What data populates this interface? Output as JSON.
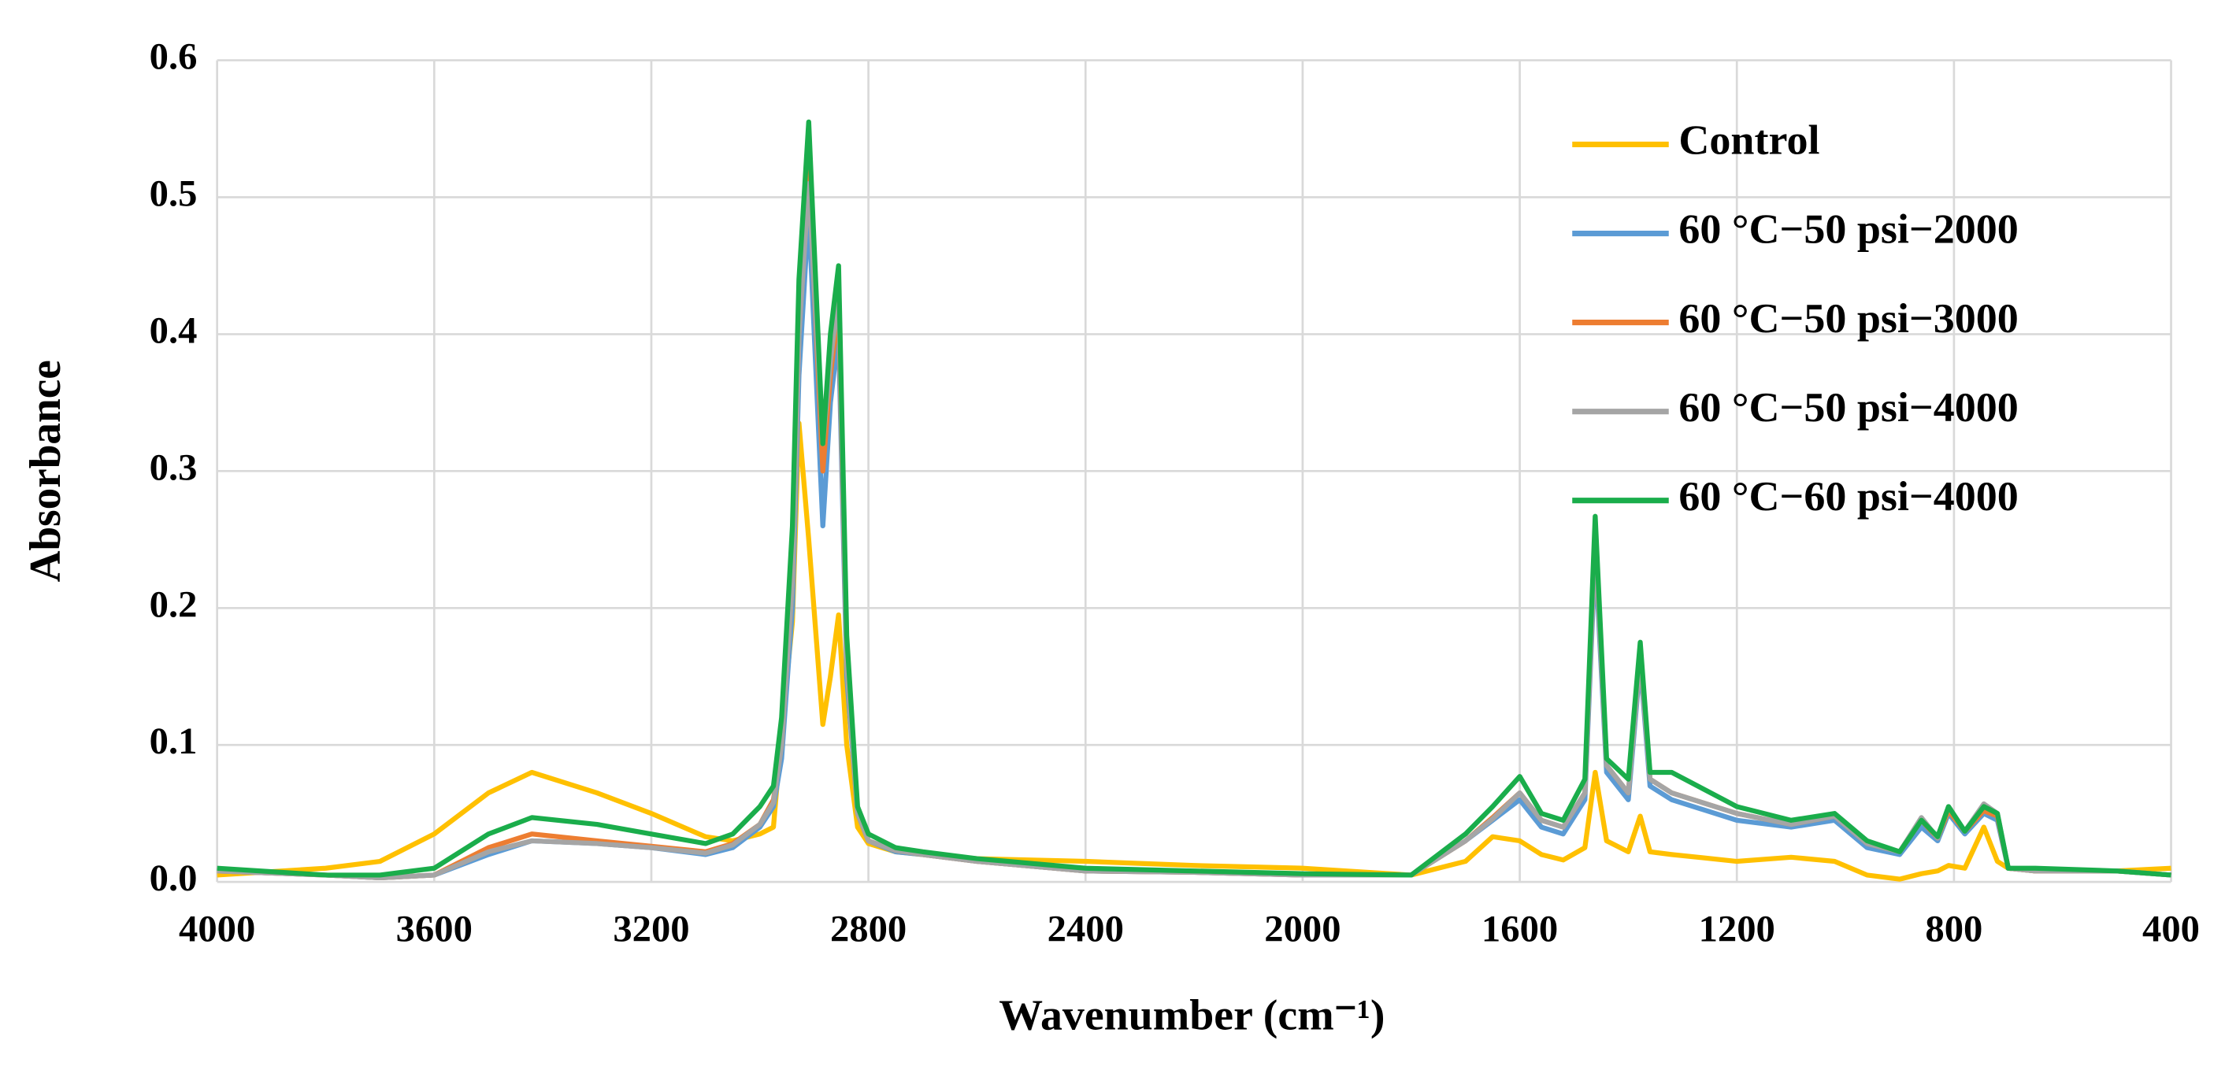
{
  "chart_data": {
    "type": "line",
    "x_label": "Wavenumber (cm⁻¹)",
    "y_label": "Absorbance",
    "xlim": [
      4000,
      400
    ],
    "ylim": [
      0,
      0.6
    ],
    "xticks": [
      4000,
      3600,
      3200,
      2800,
      2400,
      2000,
      1600,
      1200,
      800,
      400
    ],
    "yticks": [
      {
        "value": 0,
        "label": "0.0"
      },
      0.1,
      0.2,
      0.3,
      0.4,
      0.5,
      0.6
    ],
    "grid": true,
    "legend": "upper right",
    "x": [
      4000,
      3800,
      3700,
      3600,
      3500,
      3420,
      3300,
      3200,
      3100,
      3050,
      3000,
      2975,
      2960,
      2940,
      2928,
      2910,
      2884,
      2870,
      2855,
      2840,
      2820,
      2800,
      2750,
      2700,
      2600,
      2400,
      2200,
      2000,
      1800,
      1700,
      1650,
      1600,
      1560,
      1520,
      1480,
      1461,
      1440,
      1400,
      1378,
      1360,
      1320,
      1200,
      1100,
      1020,
      960,
      900,
      860,
      830,
      810,
      780,
      745,
      720,
      700,
      650,
      500,
      400
    ],
    "series": [
      {
        "name": "Control",
        "color": "#ffc000",
        "values": [
          0.005,
          0.01,
          0.015,
          0.035,
          0.065,
          0.08,
          0.065,
          0.05,
          0.033,
          0.03,
          0.035,
          0.04,
          0.11,
          0.19,
          0.335,
          0.25,
          0.115,
          0.15,
          0.195,
          0.1,
          0.04,
          0.028,
          0.022,
          0.02,
          0.017,
          0.015,
          0.012,
          0.01,
          0.005,
          0.015,
          0.033,
          0.03,
          0.02,
          0.016,
          0.025,
          0.08,
          0.03,
          0.022,
          0.048,
          0.022,
          0.02,
          0.015,
          0.018,
          0.015,
          0.005,
          0.002,
          0.006,
          0.008,
          0.012,
          0.01,
          0.04,
          0.015,
          0.01,
          0.008,
          0.008,
          0.01
        ]
      },
      {
        "name": "60 °C−50 psi−2000",
        "color": "#5b9bd5",
        "values": [
          0.008,
          0.005,
          0.003,
          0.005,
          0.02,
          0.03,
          0.028,
          0.025,
          0.02,
          0.025,
          0.04,
          0.055,
          0.09,
          0.2,
          0.37,
          0.49,
          0.26,
          0.35,
          0.4,
          0.15,
          0.05,
          0.03,
          0.022,
          0.02,
          0.015,
          0.008,
          0.007,
          0.005,
          0.005,
          0.03,
          0.045,
          0.06,
          0.04,
          0.035,
          0.06,
          0.24,
          0.08,
          0.06,
          0.16,
          0.07,
          0.06,
          0.045,
          0.04,
          0.045,
          0.025,
          0.02,
          0.04,
          0.03,
          0.05,
          0.035,
          0.05,
          0.045,
          0.01,
          0.008,
          0.008,
          0.005
        ]
      },
      {
        "name": "60 °C−50 psi−3000",
        "color": "#ed7d31",
        "values": [
          0.008,
          0.005,
          0.003,
          0.005,
          0.025,
          0.035,
          0.03,
          0.026,
          0.022,
          0.028,
          0.042,
          0.06,
          0.1,
          0.22,
          0.4,
          0.52,
          0.3,
          0.37,
          0.42,
          0.16,
          0.05,
          0.03,
          0.023,
          0.02,
          0.015,
          0.008,
          0.007,
          0.005,
          0.005,
          0.03,
          0.047,
          0.065,
          0.045,
          0.04,
          0.065,
          0.25,
          0.085,
          0.065,
          0.165,
          0.075,
          0.065,
          0.05,
          0.042,
          0.048,
          0.028,
          0.022,
          0.045,
          0.032,
          0.052,
          0.037,
          0.052,
          0.048,
          0.01,
          0.008,
          0.008,
          0.005
        ]
      },
      {
        "name": "60 °C−50 psi−4000",
        "color": "#a5a5a5",
        "values": [
          0.008,
          0.005,
          0.003,
          0.005,
          0.022,
          0.03,
          0.028,
          0.025,
          0.021,
          0.027,
          0.042,
          0.058,
          0.1,
          0.22,
          0.4,
          0.51,
          0.32,
          0.38,
          0.43,
          0.16,
          0.05,
          0.03,
          0.023,
          0.02,
          0.015,
          0.008,
          0.007,
          0.005,
          0.005,
          0.03,
          0.046,
          0.065,
          0.045,
          0.04,
          0.065,
          0.25,
          0.085,
          0.065,
          0.165,
          0.075,
          0.065,
          0.05,
          0.042,
          0.048,
          0.028,
          0.022,
          0.047,
          0.032,
          0.055,
          0.037,
          0.057,
          0.05,
          0.01,
          0.008,
          0.008,
          0.005
        ]
      },
      {
        "name": "60 °C−60 psi−4000",
        "color": "#1aad4b",
        "values": [
          0.01,
          0.005,
          0.005,
          0.01,
          0.035,
          0.047,
          0.042,
          0.035,
          0.028,
          0.035,
          0.055,
          0.07,
          0.12,
          0.26,
          0.44,
          0.555,
          0.32,
          0.4,
          0.45,
          0.18,
          0.055,
          0.035,
          0.025,
          0.022,
          0.017,
          0.01,
          0.008,
          0.006,
          0.005,
          0.035,
          0.055,
          0.077,
          0.05,
          0.045,
          0.075,
          0.267,
          0.09,
          0.075,
          0.175,
          0.08,
          0.08,
          0.055,
          0.045,
          0.05,
          0.03,
          0.022,
          0.045,
          0.033,
          0.055,
          0.037,
          0.055,
          0.05,
          0.01,
          0.01,
          0.008,
          0.005
        ]
      }
    ]
  }
}
